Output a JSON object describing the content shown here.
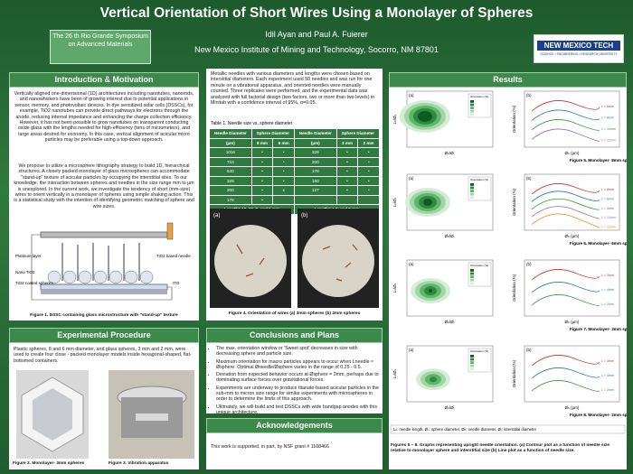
{
  "header": {
    "title": "Vertical Orientation of Short Wires Using a Monolayer of Spheres",
    "authors": "Idil Ayan and Paul A. Fuierer",
    "institution": "New Mexico Institute of Mining and Technology, Socorro, NM 87801",
    "symposium": "The 26 th Rio Grande Symposium on Advanced Materials",
    "logo": "NEW MEXICO TECH",
    "logo_sub": "SCIENCE • ENGINEERING • RESEARCH UNIVERSITY"
  },
  "intro": {
    "heading": "Introduction & Motivation",
    "paragraphs": [
      "Vertically aligned one-dimensional (1D) architectures including nanotubes, nanorods, and nanowhiskers have been of growing interest due to potential applications in sensor, memory, and photovoltaic devices. In dye sensitized solar cells (DSSCs), for example, TiO2 nanotubes can provide direct pathways for electrons through the anode, reducing internal impedance and enhancing the charge collection efficiency. However, it has not been possible to grow nanotubes on transparent conducting oxide glass with the lengths needed for high-efficiency (tens of micrometers), and large areas desired for economy. In this case, vertical alignment of acicular micro particles may be preferable using a top-down approach.",
      "We propose to utilize a microsphere lithography strategy to build 1D, hierarchical structures.  A closely packed monolayer of glass microspheres can accommodate \"stand-up\" texture of acicular particles by occupying the interstitial sites. To our knowledge, the interaction between spheres and needles in the size range mm to µm is unexplored.  In the current work, we investigate the tendency of short (mm-size) wires to orient vertically in a monolayer of spheres using simple shaking action. This is a statistical study with the intention of identifying geometric matching of sphere and wire sizes."
    ],
    "figure_labels": [
      "Platinum layer",
      "Nano TiO2",
      "TiO2 coated spheres",
      "TiO2 based needle",
      "ITO"
    ],
    "caption": "Figure 1. DSSC containing glass microstructure with \"stand-up\" texture"
  },
  "procedure": {
    "heading": "Experimental Procedure",
    "text": "Plastic spheres, 8 and 6 mm diameter, and glass spheres, 3 mm and 2 mm, were used to create four close - packed monolayer models inside hexagonal-shaped, flat-bottomed containers.",
    "captions": [
      "Figure 2. Monolayer- 3mm spheres",
      "Figure 3. Vibration apparatus"
    ]
  },
  "methods": {
    "text": "Metallic needles with various diameters and lengths were chosen based on interstitial diameters. Each experiment used 50 needles and was run for one minute on a vibrational apparatus, and oriented needles were manually counted. Three replicates were performed, and the experimental data was analyzed with full factorial design (two factors, two or more than two levels) in Minitab with a confidence interval of 95%, α=0.05.",
    "table_caption": "Table 1. Needle size vs. sphere diameter",
    "table": {
      "head": [
        "Needle Diameter",
        "Sphere Diameter",
        "Needle Diameter",
        "Sphere Diameter"
      ],
      "subhead": [
        "(µm)",
        "8 mm",
        "6 mm",
        "(µm)",
        "3 mm",
        "2 mm"
      ],
      "rows": [
        [
          "1016",
          "•",
          "•",
          "329",
          "•",
          "•"
        ],
        [
          "710",
          "•",
          "•",
          "200",
          "•",
          "•"
        ],
        [
          "540",
          "•",
          "•",
          "178",
          "•",
          "•"
        ],
        [
          "329",
          "•",
          "•",
          "160",
          "•",
          "•"
        ],
        [
          "200",
          "•",
          "x",
          "127",
          "•",
          "•"
        ],
        [
          "178",
          "•",
          null,
          null,
          null,
          null
        ]
      ],
      "foot": [
        "Length= 12, 10, 8, and 6 mm",
        "Length= 4.3, and 2 mm"
      ]
    },
    "figure_labels": [
      "(a)",
      "(b)"
    ],
    "caption": "Figure 4. Orientation of wires (a) 3mm spheres (b) 2mm spheres"
  },
  "conclusions": {
    "heading": "Conclusions and Plans",
    "bullets": [
      "The max. orientation window or 'Sweet spot' decreases in size with decreasing sphere and particle size.",
      "Maximum orientation for macro particles appears to occur when Lneedle ≈ Øsphere. Optimal Øneedle/Øsphere varies in the range of 0.25 - 0.5.",
      "Deviation from expected behavior occurs at Øsphere = 2mm, perhaps due to dominating surface forces over gravitational forces.",
      "Experiments are underway to produce titanate-based acicular particles in the sub-mm to micron size range for similar experiments with microspheres in order to determine the limits of this approach.",
      "Ultimately, we will build and test DSSCs with wide bandgap anodes with this unique architecture."
    ]
  },
  "acknowledgements": {
    "heading": "Acknowledgements",
    "text": "This work is supported, in part, by NSF grant # 1108466"
  },
  "results": {
    "heading": "Results",
    "axes": {
      "a": "(a)",
      "b": "(b)",
      "ya": "Lₙ/Øₛ",
      "xa": "Øₙ/Øᵢ",
      "yb": "Orientation (%)",
      "xb": "Øₙ (µm)",
      "legend": "Orientation (%)"
    },
    "plots": [
      {
        "lines": [
          "L = 6mm",
          "L = 8mm",
          "L = 10mm",
          "L = 12mm"
        ],
        "caption": "Figure 5. Monolayer- 8mm sphere"
      },
      {
        "lines": [
          "L = 8mm",
          "L = 6mm",
          "L = 4mm",
          "L = 10mm",
          "L = 12mm"
        ],
        "caption": "Figure 6. Monolayer- 6mm sphere"
      },
      {
        "lines": [
          "L = 3mm",
          "L = 4mm",
          "L = 2mm"
        ],
        "caption": "Figure 7. Monolayer- 3mm sphere"
      },
      {
        "lines": [
          "L = 3mm",
          "L = 4mm",
          "L = 2mm"
        ],
        "caption": "Figure 8. Monolayer- 2mm sphere"
      }
    ],
    "note": "Lₙ: needle length, Øₛ: sphere diameter, Øₙ: needle diameter, Øᵢ: interstitial diameter",
    "caption": "Figures 5 – 8. Graphs representing upright needle orientation. (a) Contour plot as a function of needle size relative to monolayer sphere and interstitial size (b) Line plot as a function of needle size."
  }
}
